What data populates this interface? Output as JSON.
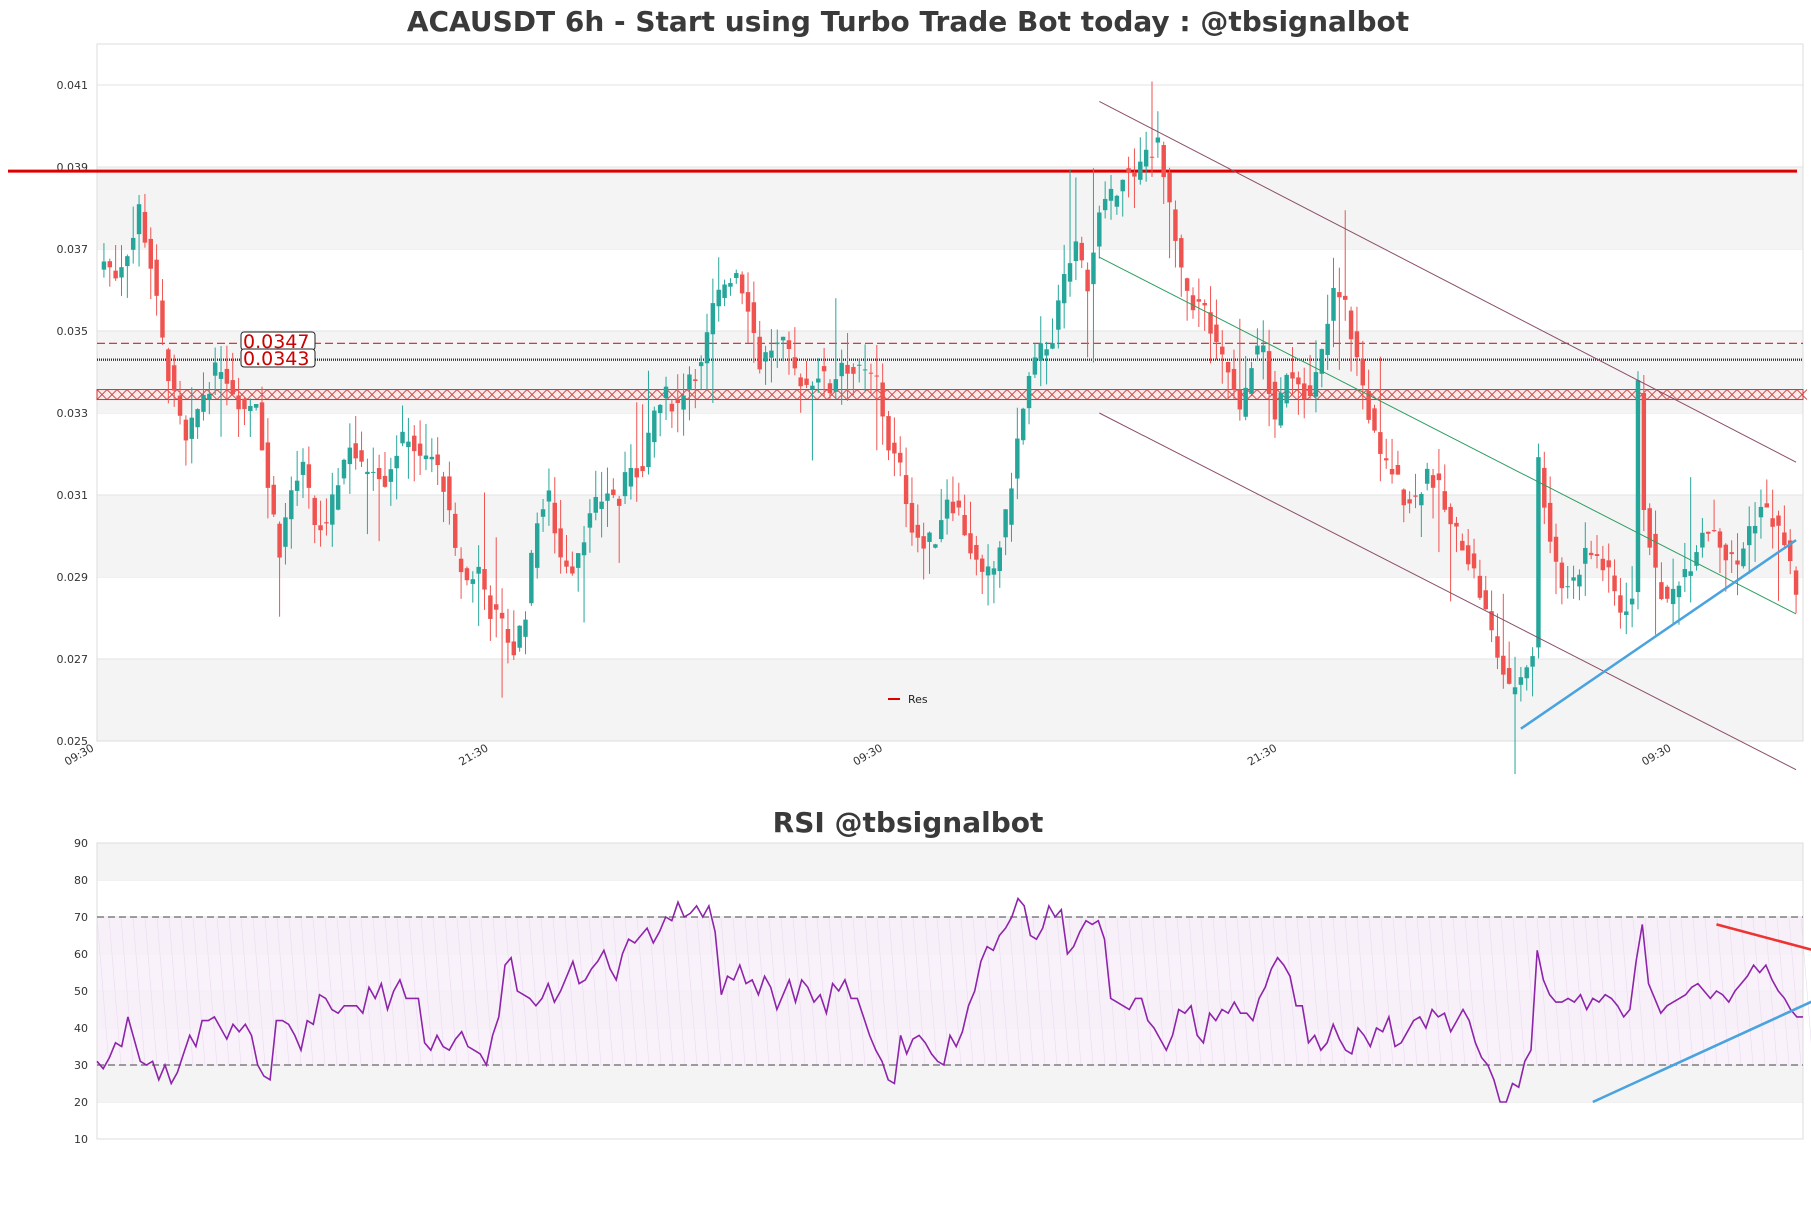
{
  "colors": {
    "up": "#26a69a",
    "down": "#ef5350",
    "resistance": "#dd0000",
    "rsi_line": "#8e24aa",
    "trend_blue": "#4aa3df",
    "trend_red": "#ee3333",
    "channel": "#8a4f6a",
    "mid_channel": "#2e9e62",
    "band": "#f4f4f4"
  },
  "chart_data": [
    {
      "type": "candlestick",
      "title": "ACAUSDT 6h - Start using Turbo Trade Bot today : @tbsignalbot",
      "ylim": [
        0.025,
        0.042
      ],
      "y_ticks": [
        "0.025",
        "0.027",
        "0.029",
        "0.031",
        "0.033",
        "0.035",
        "0.037",
        "0.039",
        "0.041"
      ],
      "x_ticks": [
        "09:30",
        "21:30",
        "09:30",
        "21:30",
        "09:30",
        "21:30"
      ],
      "x_tick_index": [
        0,
        48,
        96,
        144,
        192,
        240
      ],
      "candle_count": 245,
      "legend": {
        "label": "Res",
        "placement": "bottom-center"
      },
      "resistance_level": 0.0389,
      "price_labels": [
        {
          "text": "0.0347",
          "value": 0.0347
        },
        {
          "text": "0.0343",
          "value": 0.0343
        }
      ],
      "support_band": 0.03345,
      "anchors": [
        [
          0,
          0.0367
        ],
        [
          2,
          0.0364
        ],
        [
          5,
          0.0373
        ],
        [
          6,
          0.038
        ],
        [
          8,
          0.0366
        ],
        [
          10,
          0.0347
        ],
        [
          12,
          0.0333
        ],
        [
          14,
          0.0322
        ],
        [
          17,
          0.0335
        ],
        [
          20,
          0.0342
        ],
        [
          22,
          0.0336
        ],
        [
          24,
          0.0331
        ],
        [
          26,
          0.0334
        ],
        [
          28,
          0.0312
        ],
        [
          30,
          0.0297
        ],
        [
          32,
          0.0311
        ],
        [
          34,
          0.0316
        ],
        [
          36,
          0.0303
        ],
        [
          38,
          0.0301
        ],
        [
          40,
          0.0314
        ],
        [
          42,
          0.0323
        ],
        [
          44,
          0.0316
        ],
        [
          46,
          0.0318
        ],
        [
          48,
          0.0314
        ],
        [
          50,
          0.0321
        ],
        [
          52,
          0.0325
        ],
        [
          54,
          0.0318
        ],
        [
          56,
          0.0319
        ],
        [
          58,
          0.0313
        ],
        [
          60,
          0.0295
        ],
        [
          62,
          0.0289
        ],
        [
          64,
          0.0292
        ],
        [
          66,
          0.0282
        ],
        [
          68,
          0.0278
        ],
        [
          70,
          0.0272
        ],
        [
          72,
          0.0282
        ],
        [
          74,
          0.0305
        ],
        [
          76,
          0.0309
        ],
        [
          78,
          0.0295
        ],
        [
          80,
          0.0293
        ],
        [
          82,
          0.0301
        ],
        [
          84,
          0.0307
        ],
        [
          86,
          0.0311
        ],
        [
          88,
          0.0308
        ],
        [
          90,
          0.0318
        ],
        [
          92,
          0.0315
        ],
        [
          94,
          0.033
        ],
        [
          96,
          0.0334
        ],
        [
          98,
          0.0332
        ],
        [
          100,
          0.034
        ],
        [
          102,
          0.0341
        ],
        [
          104,
          0.0355
        ],
        [
          106,
          0.0362
        ],
        [
          108,
          0.0365
        ],
        [
          110,
          0.0357
        ],
        [
          112,
          0.0342
        ],
        [
          114,
          0.0346
        ],
        [
          116,
          0.0346
        ],
        [
          118,
          0.034
        ],
        [
          120,
          0.0337
        ],
        [
          122,
          0.034
        ],
        [
          124,
          0.0336
        ],
        [
          126,
          0.0343
        ],
        [
          128,
          0.034
        ],
        [
          130,
          0.0339
        ],
        [
          132,
          0.0338
        ],
        [
          134,
          0.0322
        ],
        [
          136,
          0.0316
        ],
        [
          138,
          0.0303
        ],
        [
          140,
          0.0297
        ],
        [
          142,
          0.03
        ],
        [
          144,
          0.031
        ],
        [
          146,
          0.0306
        ],
        [
          148,
          0.0297
        ],
        [
          150,
          0.0289
        ],
        [
          152,
          0.0292
        ],
        [
          154,
          0.0304
        ],
        [
          156,
          0.0323
        ],
        [
          158,
          0.0338
        ],
        [
          160,
          0.0345
        ],
        [
          162,
          0.0349
        ],
        [
          164,
          0.0362
        ],
        [
          166,
          0.0371
        ],
        [
          168,
          0.0362
        ],
        [
          170,
          0.0378
        ],
        [
          172,
          0.0382
        ],
        [
          174,
          0.0389
        ],
        [
          176,
          0.0386
        ],
        [
          178,
          0.0394
        ],
        [
          180,
          0.0395
        ],
        [
          182,
          0.0379
        ],
        [
          184,
          0.0363
        ],
        [
          186,
          0.0357
        ],
        [
          188,
          0.0355
        ],
        [
          190,
          0.0345
        ],
        [
          192,
          0.034
        ],
        [
          194,
          0.0329
        ],
        [
          196,
          0.0343
        ],
        [
          198,
          0.0346
        ],
        [
          200,
          0.0326
        ],
        [
          202,
          0.0341
        ],
        [
          204,
          0.0339
        ],
        [
          206,
          0.0333
        ],
        [
          208,
          0.0344
        ],
        [
          210,
          0.0359
        ],
        [
          212,
          0.0356
        ],
        [
          214,
          0.0343
        ],
        [
          216,
          0.033
        ],
        [
          218,
          0.0318
        ],
        [
          220,
          0.0316
        ],
        [
          222,
          0.031
        ],
        [
          224,
          0.0309
        ],
        [
          226,
          0.0316
        ],
        [
          228,
          0.0311
        ],
        [
          230,
          0.0302
        ],
        [
          232,
          0.0299
        ],
        [
          234,
          0.0291
        ],
        [
          236,
          0.0281
        ],
        [
          238,
          0.0271
        ],
        [
          240,
          0.0262
        ],
        [
          242,
          0.0266
        ],
        [
          244,
          0.0272
        ]
      ],
      "tail_anchors": [
        [
          245,
          0.0318
        ],
        [
          247,
          0.03
        ],
        [
          249,
          0.0288
        ],
        [
          251,
          0.0289
        ],
        [
          253,
          0.0296
        ],
        [
          255,
          0.0295
        ],
        [
          257,
          0.029
        ],
        [
          259,
          0.0282
        ],
        [
          261,
          0.0285
        ],
        [
          262,
          0.0336
        ],
        [
          263,
          0.0308
        ],
        [
          265,
          0.029
        ],
        [
          267,
          0.0283
        ],
        [
          269,
          0.029
        ],
        [
          271,
          0.0294
        ],
        [
          273,
          0.0302
        ],
        [
          275,
          0.0302
        ],
        [
          277,
          0.0295
        ],
        [
          279,
          0.0293
        ],
        [
          281,
          0.0302
        ],
        [
          283,
          0.0307
        ],
        [
          285,
          0.0304
        ],
        [
          287,
          0.0298
        ],
        [
          289,
          0.0287
        ]
      ],
      "trendlines": [
        {
          "kind": "channel-top",
          "from": [
            170,
            0.0406
          ],
          "to": [
            289,
            0.0318
          ]
        },
        {
          "kind": "channel-mid",
          "from": [
            170,
            0.0368
          ],
          "to": [
            289,
            0.0281
          ]
        },
        {
          "kind": "channel-bottom",
          "from": [
            170,
            0.033
          ],
          "to": [
            289,
            0.0243
          ]
        },
        {
          "kind": "support",
          "from": [
            242,
            0.0253
          ],
          "to": [
            289,
            0.0299
          ]
        }
      ]
    },
    {
      "type": "line",
      "title": "RSI @tbsignalbot",
      "ylim": [
        10,
        90
      ],
      "y_ticks": [
        "10",
        "20",
        "30",
        "40",
        "50",
        "60",
        "70",
        "80",
        "90"
      ],
      "reference_lines": [
        30,
        70
      ],
      "series": [
        {
          "values": [
            31,
            29,
            32,
            36,
            35,
            43,
            37,
            31,
            30,
            31,
            26,
            30,
            25,
            28,
            33,
            38,
            35,
            42,
            42,
            43,
            40,
            37,
            41,
            39,
            41,
            38,
            30,
            27,
            26,
            42,
            42,
            41,
            38,
            34,
            42,
            41,
            49,
            48,
            45,
            44,
            46,
            46,
            46,
            44,
            51,
            48,
            52,
            45,
            50,
            53,
            48,
            48,
            48,
            36,
            34,
            38,
            35,
            34,
            37,
            39,
            35,
            34,
            33,
            30,
            38,
            43,
            57,
            59,
            50,
            49,
            48,
            46,
            48,
            52,
            47,
            50,
            54,
            58,
            52,
            53,
            56,
            58,
            61,
            56,
            53,
            60,
            64,
            63,
            65,
            67,
            63,
            66,
            70,
            69,
            74,
            70,
            71,
            73,
            70,
            73,
            66,
            49,
            54,
            53,
            57,
            52,
            53,
            49,
            54,
            51,
            45,
            49,
            53,
            47,
            53,
            51,
            47,
            49,
            44,
            52,
            50,
            53,
            48,
            48,
            43,
            38,
            34,
            31,
            26,
            25,
            38,
            33,
            37,
            38,
            36,
            33,
            31,
            30,
            38,
            35,
            39,
            46,
            50,
            58,
            62,
            61,
            65,
            67,
            70,
            75,
            73,
            65,
            64,
            67,
            73,
            70,
            72,
            60,
            62,
            66,
            69,
            68,
            69,
            64,
            48,
            47,
            46,
            45,
            48,
            48,
            42,
            40,
            37,
            34,
            38,
            45,
            44,
            46,
            38,
            36,
            44,
            42,
            45,
            44,
            47,
            44,
            44,
            42,
            48,
            51,
            56,
            59,
            57,
            54,
            46,
            46,
            36,
            38,
            34,
            36,
            41,
            37,
            34,
            33,
            40,
            38,
            35,
            40,
            39,
            43,
            35,
            36,
            39,
            42,
            43,
            40,
            45,
            43,
            44,
            39,
            42,
            45,
            42,
            36,
            32,
            30,
            26,
            20,
            20,
            25,
            24,
            31,
            34,
            61,
            53,
            49,
            47,
            47,
            48,
            47,
            49,
            45,
            48,
            47,
            49,
            48,
            46,
            43,
            45,
            58,
            68,
            52,
            48,
            44,
            46,
            47,
            48,
            49,
            51,
            52,
            50,
            48,
            50,
            49,
            47,
            50,
            52,
            54,
            57,
            55,
            57,
            53,
            50,
            48,
            45,
            43,
            43
          ]
        }
      ],
      "trendlines": [
        {
          "color": "trend_blue",
          "from": [
            242,
            20
          ],
          "to": [
            289,
            56
          ]
        },
        {
          "color": "trend_red",
          "from": [
            262,
            68
          ],
          "to": [
            289,
            56
          ]
        }
      ]
    }
  ]
}
